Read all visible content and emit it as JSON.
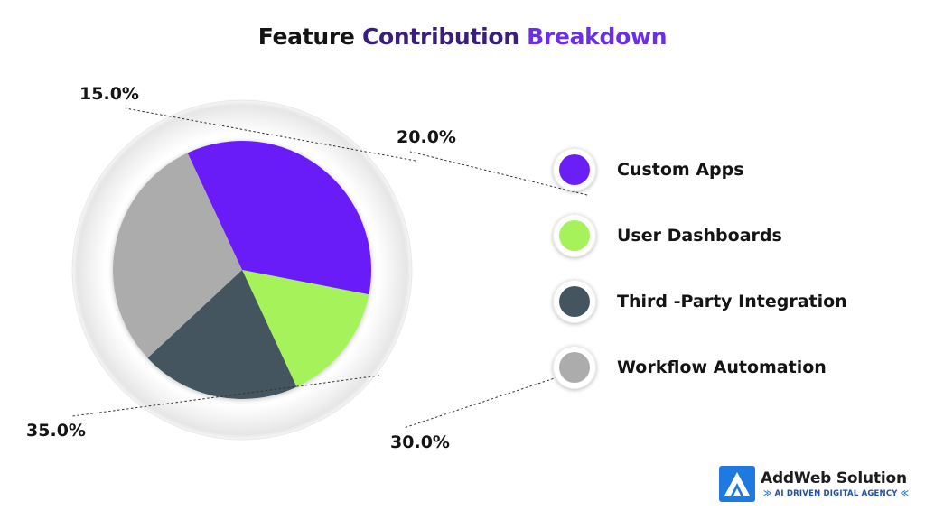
{
  "title": {
    "part1": "Feature",
    "part2": "Contribution",
    "part3": "Breakdown"
  },
  "chart_data": {
    "type": "pie",
    "title": "Feature Contribution Breakdown",
    "categories": [
      "Custom Apps",
      "User Dashboards",
      "Third -Party Integration",
      "Workflow Automation"
    ],
    "values": [
      35.0,
      15.0,
      20.0,
      30.0
    ],
    "labels": [
      "35.0%",
      "15.0%",
      "20.0%",
      "30.0%"
    ],
    "colors": [
      "#6b1ff8",
      "#a6f25a",
      "#455560",
      "#acacac"
    ],
    "legend_position": "right"
  },
  "legend": {
    "items": [
      {
        "label": "Custom Apps",
        "color": "#6b1ff8"
      },
      {
        "label": "User Dashboards",
        "color": "#a6f25a"
      },
      {
        "label": "Third -Party Integration",
        "color": "#455560"
      },
      {
        "label": "Workflow Automation",
        "color": "#acacac"
      }
    ]
  },
  "brand": {
    "name": "AddWeb Solution",
    "tagline": "AI DRIVEN DIGITAL AGENCY",
    "colors": {
      "logo": "#1f7ae0",
      "tagline": "#1f4fa8"
    }
  }
}
